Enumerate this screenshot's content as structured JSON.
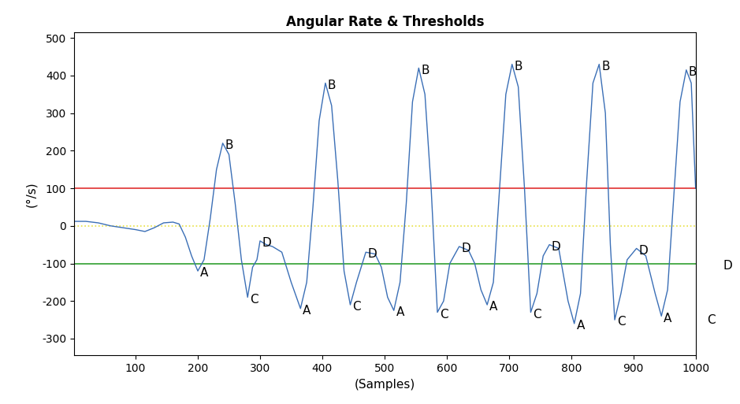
{
  "chart_data": {
    "type": "line",
    "title": "Angular Rate & Thresholds",
    "x_label": "(Samples)",
    "y_label": "(°/s)",
    "xlim": [
      1,
      1000
    ],
    "ylim": [
      -345,
      515
    ],
    "xticks": [
      100,
      200,
      300,
      400,
      500,
      600,
      700,
      800,
      900,
      1000
    ],
    "yticks": [
      -300,
      -200,
      -100,
      0,
      100,
      200,
      300,
      400,
      500
    ],
    "grid": false,
    "x": [
      1,
      20,
      40,
      60,
      80,
      100,
      115,
      130,
      145,
      160,
      170,
      180,
      190,
      200,
      210,
      220,
      230,
      240,
      250,
      260,
      270,
      280,
      288,
      295,
      300,
      310,
      320,
      335,
      350,
      365,
      375,
      385,
      395,
      405,
      415,
      425,
      435,
      445,
      455,
      470,
      485,
      495,
      505,
      515,
      525,
      535,
      545,
      555,
      565,
      575,
      585,
      595,
      605,
      620,
      635,
      645,
      655,
      665,
      675,
      685,
      695,
      705,
      715,
      725,
      735,
      745,
      755,
      765,
      780,
      795,
      805,
      815,
      825,
      835,
      845,
      855,
      863,
      870,
      880,
      890,
      905,
      920,
      935,
      945,
      955,
      965,
      975,
      985,
      993,
      1000
    ],
    "series": [
      {
        "color": "#3b6fb6",
        "values": [
          12,
          12,
          8,
          0,
          -5,
          -10,
          -15,
          -5,
          8,
          10,
          5,
          -30,
          -80,
          -120,
          -90,
          20,
          150,
          220,
          190,
          60,
          -90,
          -190,
          -110,
          -90,
          -40,
          -50,
          -55,
          -70,
          -150,
          -220,
          -150,
          50,
          280,
          380,
          320,
          120,
          -120,
          -210,
          -150,
          -70,
          -75,
          -110,
          -190,
          -225,
          -150,
          60,
          330,
          420,
          350,
          100,
          -230,
          -200,
          -100,
          -55,
          -65,
          -100,
          -170,
          -210,
          -150,
          100,
          350,
          430,
          370,
          100,
          -230,
          -180,
          -80,
          -50,
          -60,
          -200,
          -260,
          -180,
          120,
          380,
          430,
          300,
          -50,
          -250,
          -180,
          -90,
          -60,
          -80,
          -180,
          -240,
          -170,
          80,
          330,
          415,
          380,
          100
        ]
      }
    ],
    "thresholds": [
      {
        "value": 100,
        "color": "#e03030",
        "line_style": "solid"
      },
      {
        "value": 0,
        "color": "#e8e040",
        "line_style": "dotted"
      },
      {
        "value": -100,
        "color": "#30a030",
        "line_style": "solid"
      }
    ],
    "annotations": [
      {
        "text": "A",
        "x": 200,
        "y": -120
      },
      {
        "text": "A",
        "x": 365,
        "y": -220
      },
      {
        "text": "A",
        "x": 515,
        "y": -225
      },
      {
        "text": "A",
        "x": 665,
        "y": -210
      },
      {
        "text": "A",
        "x": 805,
        "y": -260
      },
      {
        "text": "A",
        "x": 945,
        "y": -240
      },
      {
        "text": "B",
        "x": 240,
        "y": 220
      },
      {
        "text": "B",
        "x": 405,
        "y": 380
      },
      {
        "text": "B",
        "x": 555,
        "y": 420
      },
      {
        "text": "B",
        "x": 705,
        "y": 430
      },
      {
        "text": "B",
        "x": 845,
        "y": 430
      },
      {
        "text": "B",
        "x": 985,
        "y": 415
      },
      {
        "text": "C",
        "x": 280,
        "y": -190
      },
      {
        "text": "C",
        "x": 445,
        "y": -210
      },
      {
        "text": "C",
        "x": 585,
        "y": -230
      },
      {
        "text": "C",
        "x": 735,
        "y": -230
      },
      {
        "text": "C",
        "x": 870,
        "y": -250
      },
      {
        "text": "C",
        "x": 1015,
        "y": -245
      },
      {
        "text": "D",
        "x": 300,
        "y": -40
      },
      {
        "text": "D",
        "x": 470,
        "y": -70
      },
      {
        "text": "D",
        "x": 620,
        "y": -55
      },
      {
        "text": "D",
        "x": 765,
        "y": -50
      },
      {
        "text": "D",
        "x": 905,
        "y": -60
      },
      {
        "text": "D",
        "x": 1040,
        "y": -100
      }
    ]
  }
}
